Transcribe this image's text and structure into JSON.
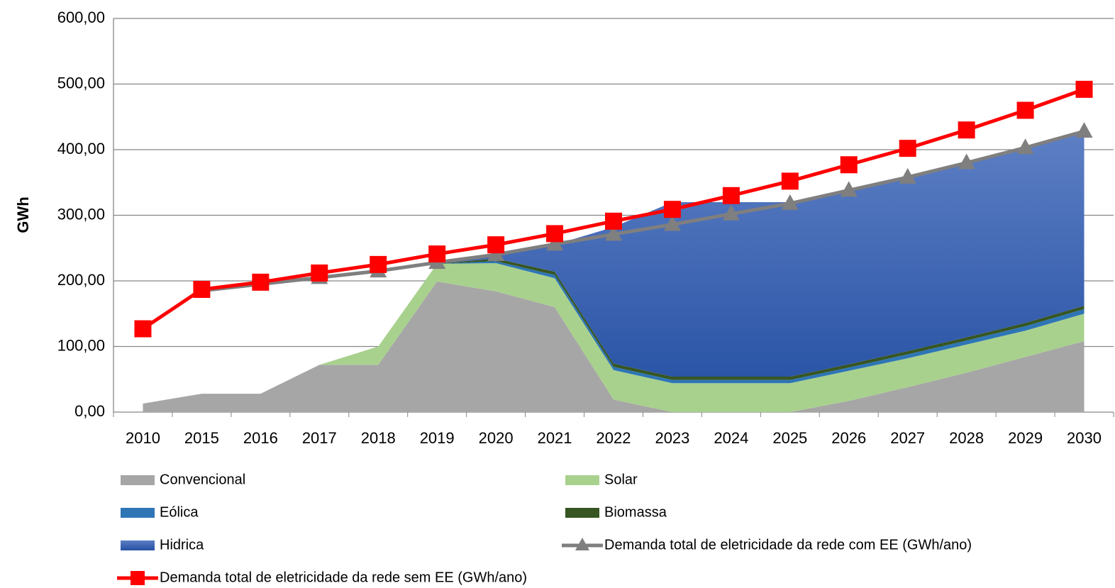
{
  "chart_data": {
    "type": "stacked-area-line",
    "y_label": "GWh",
    "categories": [
      "2010",
      "2015",
      "2016",
      "2017",
      "2018",
      "2019",
      "2020",
      "2021",
      "2022",
      "2023",
      "2024",
      "2025",
      "2026",
      "2027",
      "2028",
      "2029",
      "2030"
    ],
    "series": [
      {
        "name": "Convencional",
        "kind": "area",
        "color": "#a6a6a6",
        "values": [
          13,
          28,
          28,
          72,
          72,
          199,
          184,
          160,
          19,
          0,
          0,
          0,
          17,
          38,
          60,
          84,
          108
        ]
      },
      {
        "name": "Solar",
        "kind": "area",
        "color": "#a9d18e",
        "values": [
          0,
          0,
          0,
          0,
          28,
          27,
          43,
          44,
          45,
          44,
          44,
          44,
          46,
          44,
          43,
          40,
          42
        ]
      },
      {
        "name": "Eólica",
        "kind": "area",
        "color": "#2e75b6",
        "values": [
          0,
          0,
          0,
          0,
          0,
          0,
          3,
          5,
          5,
          5,
          5,
          5,
          5,
          6,
          6,
          7,
          7
        ]
      },
      {
        "name": "Biomassa",
        "kind": "area",
        "color": "#375623",
        "values": [
          0,
          0,
          0,
          0,
          0,
          0,
          4,
          5,
          5,
          5,
          5,
          5,
          5,
          5,
          5,
          5,
          5
        ]
      },
      {
        "name": "Hidrica",
        "kind": "area",
        "color": "#2f58a8",
        "values": [
          0,
          0,
          0,
          0,
          0,
          0,
          4,
          41,
          208,
          266,
          266,
          266,
          265,
          265,
          266,
          267,
          263
        ]
      },
      {
        "name": "Demanda total de eletricidade da rede com EE (GWh/ano)",
        "kind": "line",
        "marker": "triangle",
        "color": "#7f7f7f",
        "values": [
          null,
          185,
          195,
          205,
          215,
          228,
          240,
          256,
          271,
          286,
          302,
          318,
          338,
          358,
          380,
          403,
          428
        ]
      },
      {
        "name": "Demanda total de eletricidade da rede sem EE (GWh/ano)",
        "kind": "line",
        "marker": "square",
        "color": "#ff0000",
        "values": [
          127,
          187,
          198,
          212,
          225,
          241,
          255,
          272,
          291,
          309,
          330,
          352,
          377,
          402,
          430,
          460,
          492
        ]
      }
    ],
    "ylim": [
      0,
      600
    ],
    "yticks": [
      {
        "value": 0,
        "label": "0,00"
      },
      {
        "value": 100,
        "label": "100,00"
      },
      {
        "value": 200,
        "label": "200,00"
      },
      {
        "value": 300,
        "label": "300,00"
      },
      {
        "value": 400,
        "label": "400,00"
      },
      {
        "value": 500,
        "label": "500,00"
      },
      {
        "value": 600,
        "label": "600,00"
      }
    ],
    "grid": true
  }
}
